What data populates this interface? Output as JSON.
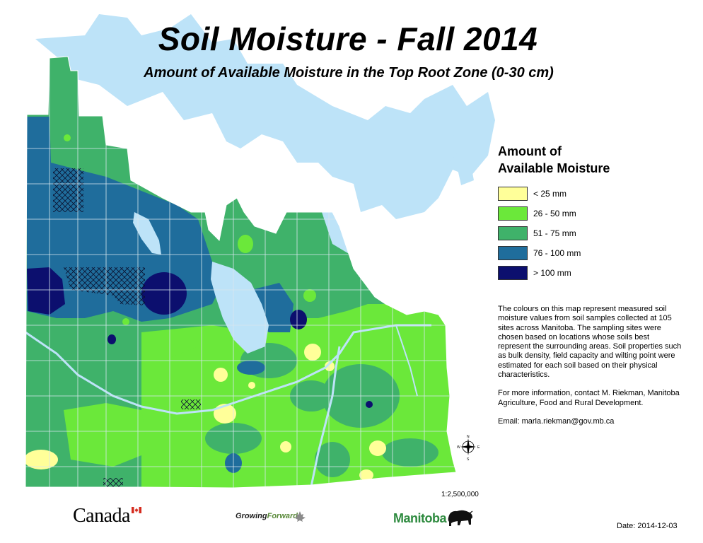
{
  "map": {
    "title": "Soil Moisture - Fall 2014",
    "subtitle": "Amount of Available Moisture in the Top Root Zone (0-30 cm)",
    "scale": "1:2,500,000",
    "date": "Date: 2014-12-03"
  },
  "legend": {
    "title_line1": "Amount of",
    "title_line2": "Available Moisture",
    "items": [
      {
        "label": "< 25 mm",
        "color": "#ffff99"
      },
      {
        "label": "26 - 50 mm",
        "color": "#6be83a"
      },
      {
        "label": "51 - 75 mm",
        "color": "#3fb26a"
      },
      {
        "label": "76 - 100 mm",
        "color": "#1f6d9c"
      },
      {
        "label": "> 100 mm",
        "color": "#0c0f6e"
      }
    ]
  },
  "description": {
    "paragraph1": "The colours on this map represent measured soil moisture values from soil samples collected at 105 sites across Manitoba.  The sampling sites were chosen based on locations whose soils best represent the surrounding areas.  Soil properties such as bulk density, field capacity and wilting point were estimated for each soil based on their physical characteristics.",
    "paragraph2": "For more information, contact M. Riekman, Manitoba Agriculture, Food and Rural Development.",
    "paragraph3": "Email: marla.riekman@gov.mb.ca"
  },
  "compass": {
    "n": "N",
    "s": "S",
    "e": "E",
    "w": "W"
  },
  "logos": {
    "canada": "Canada",
    "gf_part1": "Growing",
    "gf_part2": "Forward",
    "manitoba": "Manitoba"
  },
  "colors": {
    "water": "#bde3f8",
    "boundary": "#d8e6ee"
  }
}
